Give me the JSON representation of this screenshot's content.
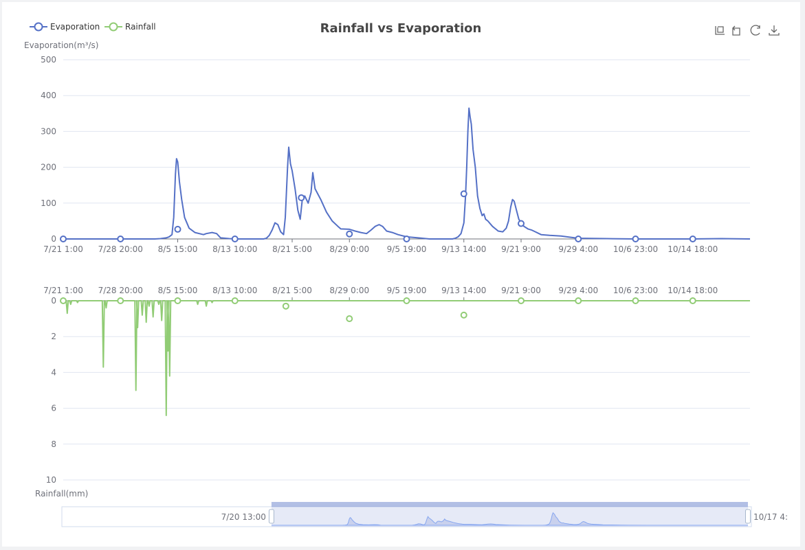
{
  "chart_data": {
    "type": "line",
    "title": "Rainfall vs Evaporation",
    "legend": {
      "position": "top-left",
      "entries": [
        {
          "name": "Evaporation",
          "color": "#5470c6"
        },
        {
          "name": "Rainfall",
          "color": "#91cc75"
        }
      ]
    },
    "x_ticks": [
      "7/21 1:00",
      "7/28 20:00",
      "8/5 15:00",
      "8/13 10:00",
      "8/21 5:00",
      "8/29 0:00",
      "9/5 19:00",
      "9/13 14:00",
      "9/21 9:00",
      "9/29 4:00",
      "10/6 23:00",
      "10/14 18:00"
    ],
    "x_range_ticks": [
      0,
      12
    ],
    "evaporation": {
      "name": "Evaporation",
      "axis_label": "Evaporation(m³/s)",
      "ylim": [
        0,
        500
      ],
      "y_ticks": [
        "0",
        "100",
        "200",
        "300",
        "400",
        "500"
      ],
      "points": [
        [
          0,
          0
        ],
        [
          1.6,
          0
        ],
        [
          1.7,
          1
        ],
        [
          1.8,
          3
        ],
        [
          1.85,
          6
        ],
        [
          1.9,
          12
        ],
        [
          1.93,
          60
        ],
        [
          1.96,
          180
        ],
        [
          1.98,
          224
        ],
        [
          2.0,
          215
        ],
        [
          2.03,
          160
        ],
        [
          2.07,
          110
        ],
        [
          2.12,
          60
        ],
        [
          2.2,
          30
        ],
        [
          2.3,
          18
        ],
        [
          2.45,
          12
        ],
        [
          2.5,
          15
        ],
        [
          2.6,
          18
        ],
        [
          2.68,
          15
        ],
        [
          2.75,
          3
        ],
        [
          2.9,
          1
        ],
        [
          3.0,
          0
        ],
        [
          3.5,
          0
        ],
        [
          3.5,
          0
        ],
        [
          3.55,
          2
        ],
        [
          3.6,
          10
        ],
        [
          3.65,
          25
        ],
        [
          3.7,
          45
        ],
        [
          3.75,
          40
        ],
        [
          3.8,
          20
        ],
        [
          3.85,
          12
        ],
        [
          3.88,
          60
        ],
        [
          3.92,
          200
        ],
        [
          3.94,
          256
        ],
        [
          3.97,
          210
        ],
        [
          4.0,
          190
        ],
        [
          4.05,
          140
        ],
        [
          4.1,
          80
        ],
        [
          4.14,
          55
        ],
        [
          4.18,
          115
        ],
        [
          4.22,
          120
        ],
        [
          4.28,
          100
        ],
        [
          4.33,
          130
        ],
        [
          4.36,
          185
        ],
        [
          4.4,
          140
        ],
        [
          4.5,
          110
        ],
        [
          4.6,
          75
        ],
        [
          4.7,
          50
        ],
        [
          4.8,
          35
        ],
        [
          4.85,
          28
        ],
        [
          5.0,
          27
        ],
        [
          5.1,
          22
        ],
        [
          5.2,
          18
        ],
        [
          5.3,
          15
        ],
        [
          5.38,
          25
        ],
        [
          5.45,
          35
        ],
        [
          5.52,
          40
        ],
        [
          5.58,
          35
        ],
        [
          5.65,
          22
        ],
        [
          5.75,
          18
        ],
        [
          5.85,
          12
        ],
        [
          6.0,
          6
        ],
        [
          6.2,
          3
        ],
        [
          6.4,
          0
        ],
        [
          6.8,
          0
        ],
        [
          6.85,
          2
        ],
        [
          6.9,
          6
        ],
        [
          6.95,
          15
        ],
        [
          7.0,
          45
        ],
        [
          7.03,
          120
        ],
        [
          7.05,
          200
        ],
        [
          7.07,
          300
        ],
        [
          7.09,
          365
        ],
        [
          7.11,
          340
        ],
        [
          7.13,
          320
        ],
        [
          7.16,
          250
        ],
        [
          7.2,
          200
        ],
        [
          7.24,
          120
        ],
        [
          7.28,
          85
        ],
        [
          7.32,
          65
        ],
        [
          7.35,
          70
        ],
        [
          7.38,
          55
        ],
        [
          7.42,
          50
        ],
        [
          7.5,
          35
        ],
        [
          7.6,
          22
        ],
        [
          7.68,
          20
        ],
        [
          7.74,
          30
        ],
        [
          7.78,
          50
        ],
        [
          7.82,
          90
        ],
        [
          7.85,
          110
        ],
        [
          7.88,
          105
        ],
        [
          7.92,
          80
        ],
        [
          7.96,
          55
        ],
        [
          8.0,
          45
        ],
        [
          8.05,
          35
        ],
        [
          8.12,
          28
        ],
        [
          8.18,
          25
        ],
        [
          8.25,
          20
        ],
        [
          8.35,
          12
        ],
        [
          8.5,
          10
        ],
        [
          8.7,
          8
        ],
        [
          8.8,
          6
        ],
        [
          9.0,
          2
        ],
        [
          9.5,
          1
        ],
        [
          10.0,
          0
        ],
        [
          11.0,
          0
        ],
        [
          11.5,
          1
        ],
        [
          12.0,
          0
        ]
      ],
      "markers": [
        [
          0,
          0
        ],
        [
          1,
          0
        ],
        [
          2,
          27
        ],
        [
          3,
          0
        ],
        [
          4.16,
          115
        ],
        [
          5,
          14
        ],
        [
          6,
          0
        ],
        [
          7,
          126
        ],
        [
          8,
          43
        ],
        [
          9,
          0
        ],
        [
          10,
          0
        ],
        [
          11,
          0
        ]
      ]
    },
    "rainfall": {
      "name": "Rainfall",
      "axis_label": "Rainfall(mm)",
      "inverse": true,
      "ylim": [
        0,
        10
      ],
      "y_ticks": [
        "0",
        "2",
        "4",
        "6",
        "8",
        "10"
      ],
      "spikes": [
        [
          0.07,
          0.7
        ],
        [
          0.13,
          0.2
        ],
        [
          0.25,
          0.1
        ],
        [
          0.7,
          3.7
        ],
        [
          0.75,
          0.4
        ],
        [
          1.27,
          5.0
        ],
        [
          1.3,
          1.5
        ],
        [
          1.38,
          0.8
        ],
        [
          1.45,
          1.2
        ],
        [
          1.5,
          0.3
        ],
        [
          1.57,
          0.9
        ],
        [
          1.67,
          0.2
        ],
        [
          1.72,
          1.1
        ],
        [
          1.8,
          6.4
        ],
        [
          1.83,
          2.8
        ],
        [
          1.86,
          4.2
        ],
        [
          2.35,
          0.2
        ],
        [
          2.6,
          0.1
        ],
        [
          2.5,
          0.3
        ],
        [
          2.5,
          0.3
        ],
        [
          2.5,
          0.3
        ],
        [
          2.5,
          0.3
        ],
        [
          2.5,
          0.3
        ],
        [
          2.5,
          0.3
        ],
        [
          2.5,
          0.3
        ],
        [
          2.5,
          0.3
        ],
        [
          2.5,
          0.3
        ],
        [
          2.5,
          0.3
        ],
        [
          2.5,
          0.3
        ],
        [
          2.5,
          0.3
        ],
        [
          2.5,
          0.3
        ],
        [
          2.5,
          0.3
        ],
        [
          2.5,
          0.3
        ],
        [
          2.5,
          0.3
        ],
        [
          2.5,
          0.3
        ],
        [
          2.5,
          0.3
        ],
        [
          2.5,
          0.3
        ]
      ],
      "markers": [
        [
          0,
          0
        ],
        [
          1,
          0
        ],
        [
          2,
          0
        ],
        [
          3,
          0
        ],
        [
          3.89,
          0.3
        ],
        [
          5,
          1.0
        ],
        [
          6,
          0
        ],
        [
          7,
          0.8
        ],
        [
          8,
          0
        ],
        [
          9,
          0
        ],
        [
          10,
          0
        ],
        [
          11,
          0
        ]
      ]
    },
    "data_zoom": {
      "start_label": "7/20 13:00",
      "end_label": "10/17 4:",
      "start_fraction": 0.304,
      "end_fraction": 0.995
    }
  },
  "toolbox": {
    "zoom": "zoom-icon",
    "zoom_back": "zoom-back-icon",
    "restore": "restore-icon",
    "save": "save-as-image-icon"
  }
}
